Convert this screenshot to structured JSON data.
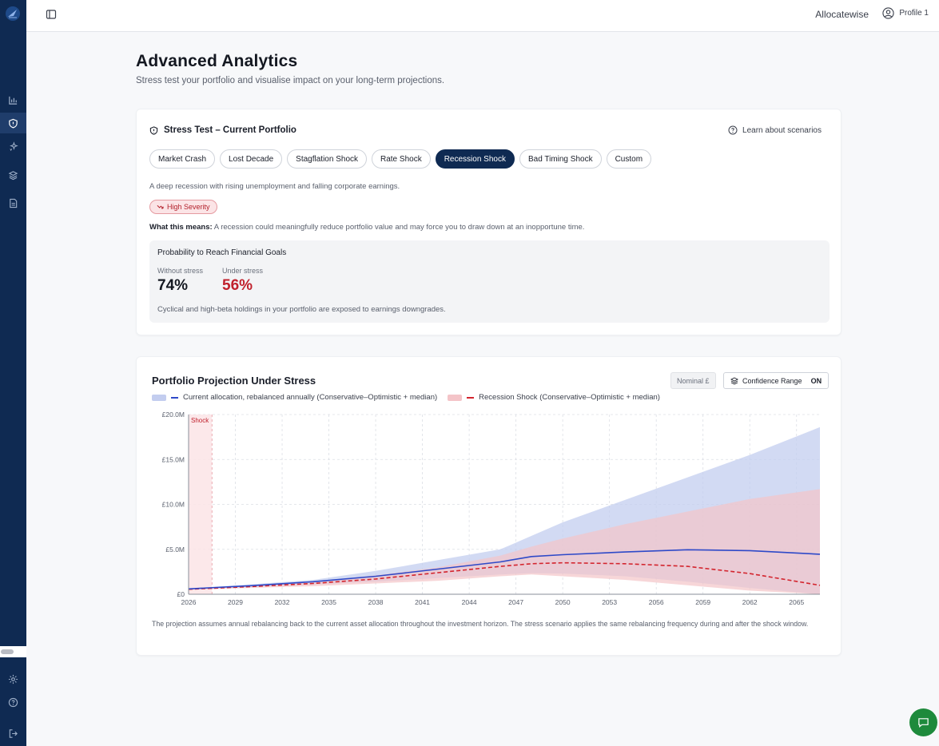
{
  "sidebar": {
    "items": [
      {
        "icon": "bar-chart-icon"
      },
      {
        "icon": "shield-icon",
        "active": true
      },
      {
        "icon": "sparkles-icon"
      },
      {
        "icon": "layers-icon"
      },
      {
        "icon": "document-icon"
      }
    ],
    "bottom": [
      {
        "icon": "gear-icon"
      },
      {
        "icon": "help-icon"
      },
      {
        "icon": "logout-icon"
      }
    ]
  },
  "topbar": {
    "brand": "Allocatewise",
    "profile": "Profile 1"
  },
  "page": {
    "title": "Advanced Analytics",
    "subtitle": "Stress test your portfolio and visualise impact on your long-term projections."
  },
  "stress": {
    "title": "Stress Test – Current Portfolio",
    "learn": "Learn about scenarios",
    "scenarios": [
      "Market Crash",
      "Lost Decade",
      "Stagflation Shock",
      "Rate Shock",
      "Recession Shock",
      "Bad Timing Shock",
      "Custom"
    ],
    "selected": "Recession Shock",
    "description": "A deep recession with rising unemployment and falling corporate earnings.",
    "severity": "High Severity",
    "meaning_label": "What this means:",
    "meaning_text": "A recession could meaningfully reduce portfolio value and may force you to draw down at an inopportune time.",
    "probability": {
      "title": "Probability to Reach Financial Goals",
      "without_label": "Without stress",
      "without_value": "74%",
      "under_label": "Under stress",
      "under_value": "56%",
      "note": "Cyclical and high-beta holdings in your portfolio are exposed to earnings downgrades."
    }
  },
  "projection": {
    "title": "Portfolio Projection Under Stress",
    "nominal": "Nominal £",
    "confidence_label": "Confidence Range",
    "confidence_state": "ON",
    "note": "The projection assumes annual rebalancing back to the current asset allocation throughout the investment horizon. The stress scenario applies the same rebalancing frequency during and after the shock window."
  },
  "colors": {
    "navy": "#0f2a52",
    "base": "#2e49c8",
    "baseBand": "#c3cdef",
    "stress": "#d3252e",
    "stressBand": "#f4c4c8"
  },
  "chart_data": {
    "type": "area",
    "xlabel": "",
    "ylabel": "",
    "x_ticks": [
      "2026",
      "2029",
      "2032",
      "2035",
      "2038",
      "2041",
      "2044",
      "2047",
      "2050",
      "2053",
      "2056",
      "2059",
      "2062",
      "2065"
    ],
    "y_ticks": [
      "£0",
      "£5.0M",
      "£10.0M",
      "£15.0M",
      "£20.0M"
    ],
    "xlim": [
      2026,
      2066.5
    ],
    "ylim": [
      0,
      20
    ],
    "shock_label": "Shock",
    "shock_window": [
      2026,
      2027.5
    ],
    "x": [
      2026,
      2030,
      2034,
      2038,
      2042,
      2046,
      2048,
      2050,
      2054,
      2058,
      2062,
      2066.5
    ],
    "series": [
      {
        "name": "Current allocation, rebalanced annually (Conservative–Optimistic + median)",
        "median": [
          0.6,
          0.95,
          1.4,
          2.0,
          2.8,
          3.6,
          4.2,
          4.4,
          4.7,
          4.95,
          4.85,
          4.45
        ],
        "low": [
          0.55,
          0.8,
          1.1,
          1.4,
          1.8,
          2.2,
          2.35,
          2.3,
          2.0,
          1.4,
          0.7,
          0.0
        ],
        "high": [
          0.65,
          1.1,
          1.6,
          2.6,
          3.8,
          5.0,
          6.5,
          8.0,
          10.5,
          13.0,
          15.5,
          18.6
        ]
      },
      {
        "name": "Recession Shock (Conservative–Optimistic + median)",
        "median": [
          0.55,
          0.85,
          1.2,
          1.7,
          2.4,
          3.1,
          3.4,
          3.5,
          3.4,
          3.1,
          2.3,
          1.0
        ],
        "low": [
          0.5,
          0.7,
          0.9,
          1.2,
          1.5,
          2.0,
          2.2,
          2.0,
          1.6,
          1.0,
          0.4,
          0.0
        ],
        "high": [
          0.6,
          0.95,
          1.4,
          2.1,
          3.0,
          4.3,
          5.3,
          6.2,
          7.8,
          9.2,
          10.6,
          11.7
        ]
      }
    ]
  }
}
